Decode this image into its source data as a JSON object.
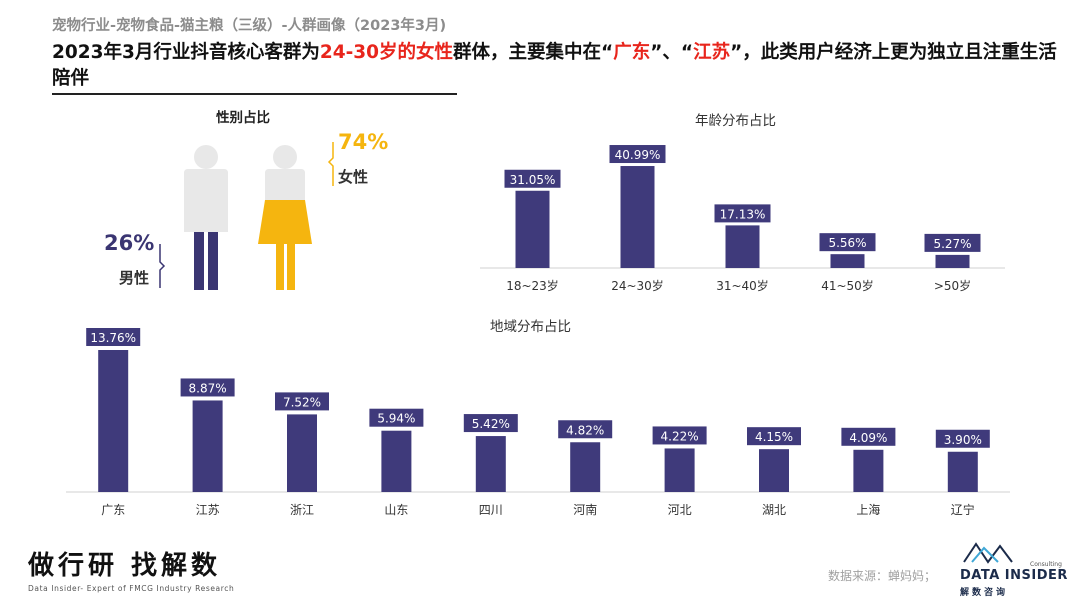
{
  "header": {
    "subtitle": "宠物行业-宠物食品-猫主粮（三级）-人群画像（2023年3月)",
    "headline_part1": "2023年3月行业抖音核心客群为",
    "headline_hl1": "24-30岁的女性",
    "headline_part2": "群体，主要集中在“",
    "headline_hl2": "广东",
    "headline_part3": "”、“",
    "headline_hl3": "江苏",
    "headline_part4": "”，此类用户经济上更为独立且注重生活陪伴"
  },
  "gender": {
    "title": "性别占比",
    "female_pct": "74%",
    "female_label": "女性",
    "male_pct": "26%",
    "male_label": "男性"
  },
  "colors": {
    "bar": "#3f3a7b",
    "female": "#f5b50f",
    "male_body": "#3a3572",
    "figure_grey": "#e8e8e8",
    "highlight": "#e8251c"
  },
  "chart_data": [
    {
      "type": "bar",
      "title": "年龄分布占比",
      "categories": [
        "18~23岁",
        "24~30岁",
        "31~40岁",
        "41~50岁",
        ">50岁"
      ],
      "values": [
        31.05,
        40.99,
        17.13,
        5.56,
        5.27
      ],
      "labels": [
        "31.05%",
        "40.99%",
        "17.13%",
        "5.56%",
        "5.27%"
      ],
      "ylim": [
        0,
        41
      ],
      "grid": false
    },
    {
      "type": "bar",
      "title": "地域分布占比",
      "categories": [
        "广东",
        "江苏",
        "浙江",
        "山东",
        "四川",
        "河南",
        "河北",
        "湖北",
        "上海",
        "辽宁"
      ],
      "values": [
        13.76,
        8.87,
        7.52,
        5.94,
        5.42,
        4.82,
        4.22,
        4.15,
        4.09,
        3.9
      ],
      "labels": [
        "13.76%",
        "8.87%",
        "7.52%",
        "5.94%",
        "5.42%",
        "4.82%",
        "4.22%",
        "4.15%",
        "4.09%",
        "3.90%"
      ],
      "ylim": [
        0,
        13.76
      ],
      "grid": false
    }
  ],
  "footer": {
    "slogan": "做行研 找解数",
    "tagline": "Data Insider- Expert of FMCG Industry Research",
    "source": "数据来源：蝉妈妈；",
    "brand": "DATA INSIDER",
    "brand_cn": "解数咨询",
    "brand_consult": "Consulting"
  }
}
